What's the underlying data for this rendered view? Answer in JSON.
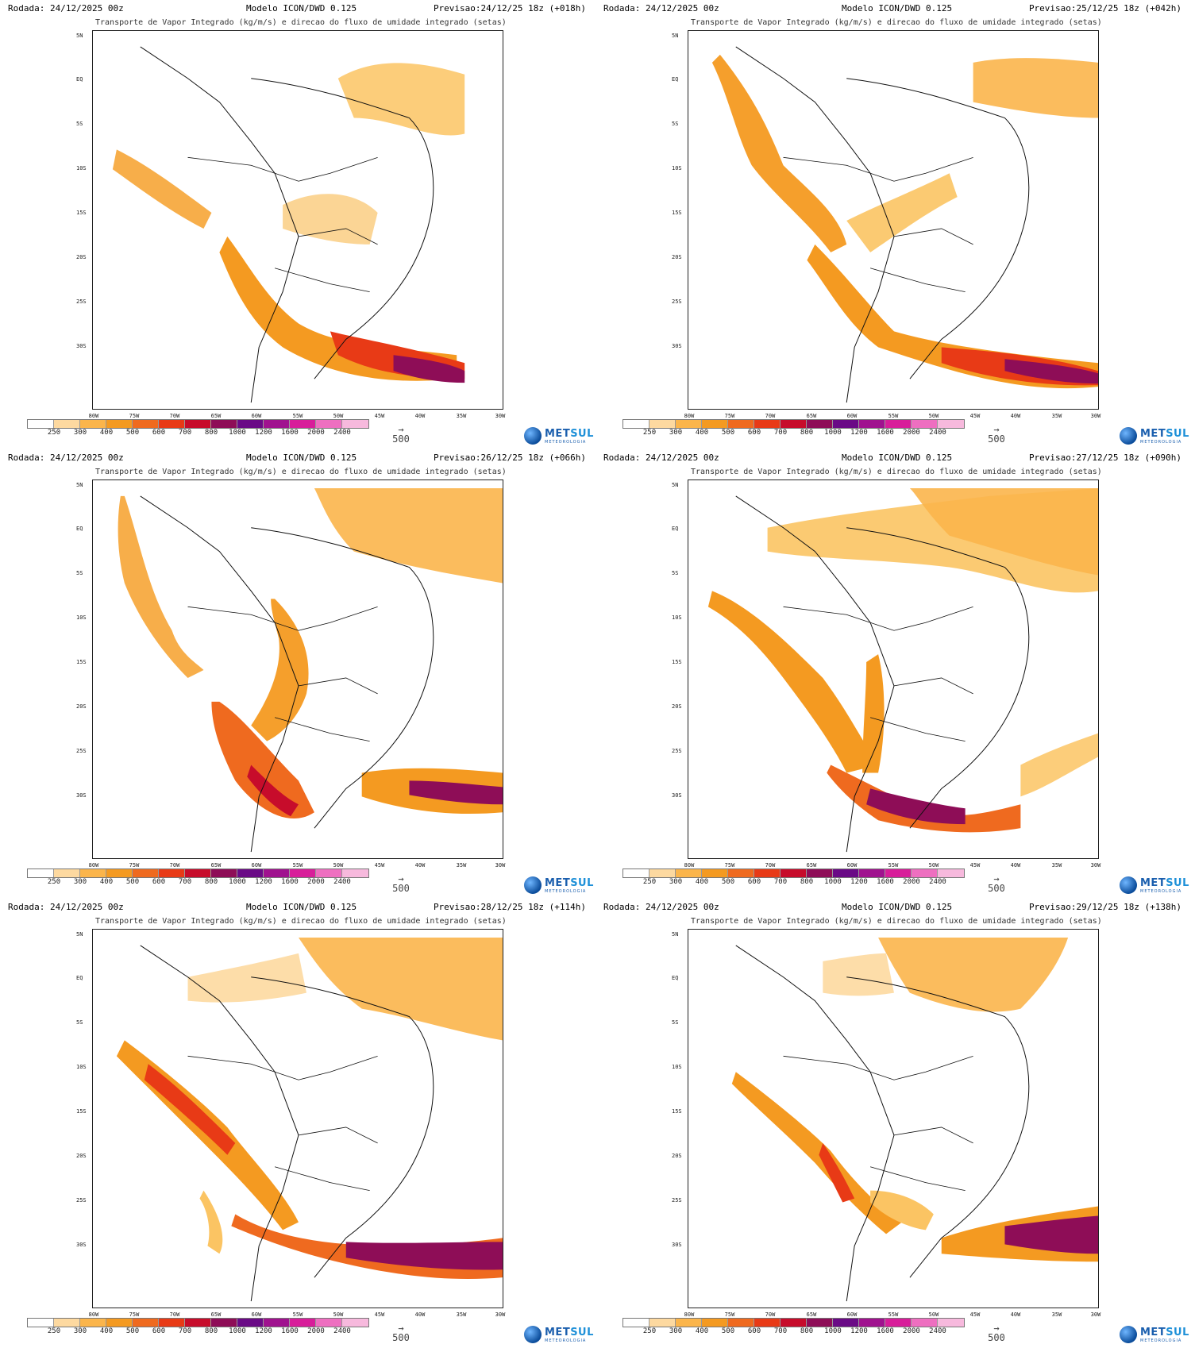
{
  "common": {
    "run": "Rodada: 24/12/2025 00z",
    "model": "Modelo ICON/DWD 0.125",
    "subtitle": "Transporte de Vapor Integrado (kg/m/s) e direcao do fluxo de umidade integrado (setas)",
    "lat_labels": [
      "5N",
      "EQ",
      "5S",
      "10S",
      "15S",
      "20S",
      "25S",
      "30S"
    ],
    "lon_labels": [
      "80W",
      "75W",
      "70W",
      "65W",
      "60W",
      "55W",
      "50W",
      "45W",
      "40W",
      "35W",
      "30W"
    ],
    "scale_labels": [
      "250",
      "300",
      "400",
      "500",
      "600",
      "700",
      "800",
      "1000",
      "1200",
      "1600",
      "2000",
      "2400"
    ],
    "scale_colors": [
      "#ffffff",
      "#fdd9a0",
      "#fbb54b",
      "#f49a21",
      "#ef6a1f",
      "#e83a16",
      "#c70c2b",
      "#8e0d57",
      "#6a0a86",
      "#a0128f",
      "#d81d9a",
      "#ee6fc0",
      "#f7b9dd"
    ],
    "vector_ref": "500",
    "logo": {
      "name_a": "MET",
      "name_b": "SUL",
      "tagline": "METEOROLOGIA"
    }
  },
  "panels": [
    {
      "forecast": "Previsao:24/12/25 18z (+018h)"
    },
    {
      "forecast": "Previsao:25/12/25 18z (+042h)"
    },
    {
      "forecast": "Previsao:26/12/25 18z (+066h)"
    },
    {
      "forecast": "Previsao:27/12/25 18z (+090h)"
    },
    {
      "forecast": "Previsao:28/12/25 18z (+114h)"
    },
    {
      "forecast": "Previsao:29/12/25 18z (+138h)"
    }
  ]
}
